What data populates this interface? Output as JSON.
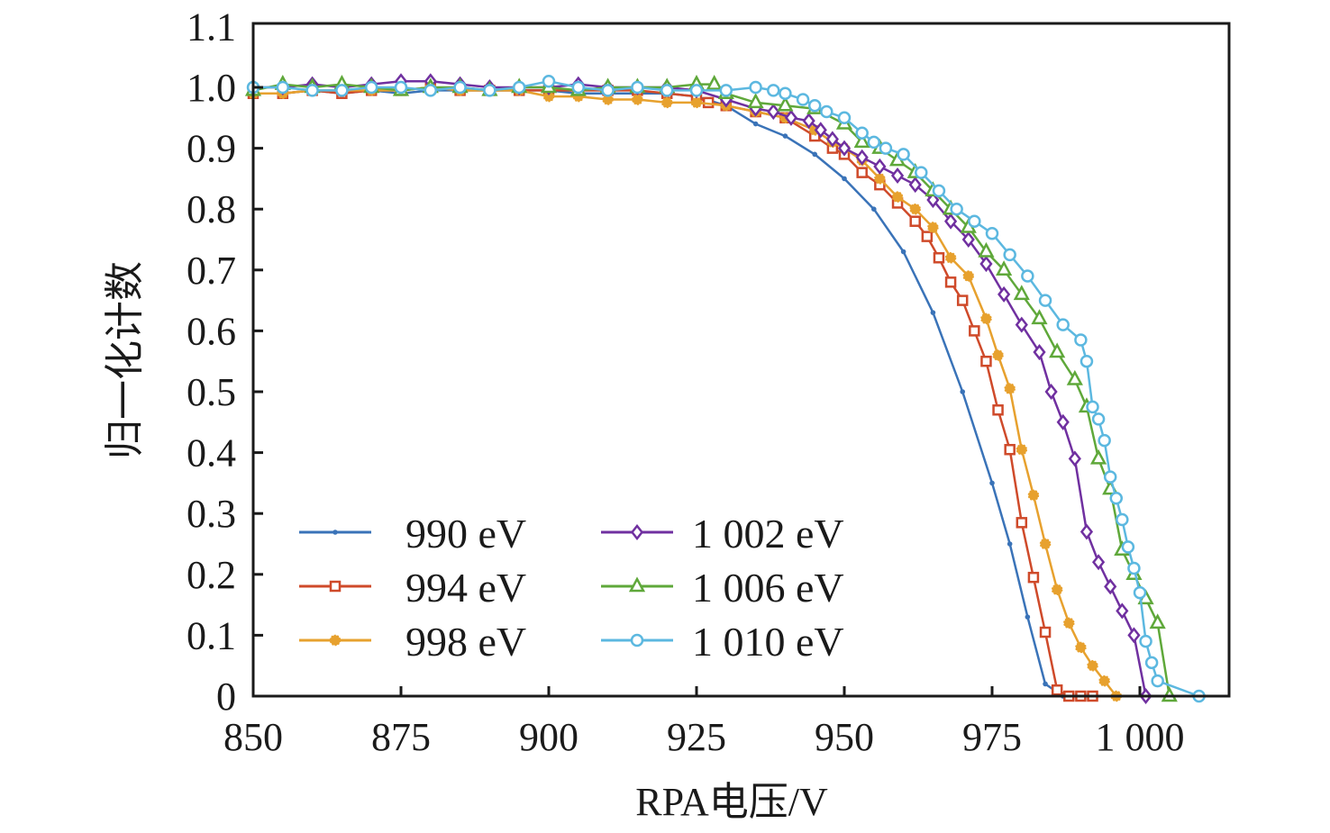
{
  "chart_data": {
    "type": "line",
    "title": "",
    "xlabel": "RPA电压/V",
    "ylabel": "归一化计数",
    "xlim": [
      850,
      1015
    ],
    "ylim": [
      0,
      1.1
    ],
    "xticks": [
      850,
      875,
      900,
      925,
      950,
      975,
      1000
    ],
    "xtick_labels": [
      "850",
      "875",
      "900",
      "925",
      "950",
      "975",
      "1 000"
    ],
    "yticks": [
      0,
      0.1,
      0.2,
      0.3,
      0.4,
      0.5,
      0.6,
      0.7,
      0.8,
      0.9,
      1.0,
      1.1
    ],
    "ytick_labels": [
      "0",
      "0.1",
      "0.2",
      "0.3",
      "0.4",
      "0.5",
      "0.6",
      "0.7",
      "0.8",
      "0.9",
      "1.0",
      "1.1"
    ],
    "grid": false,
    "legend_position": "bottom-left",
    "series": [
      {
        "name": "990 eV",
        "color": "#3a73b8",
        "marker": "dot",
        "x": [
          850,
          855,
          860,
          865,
          870,
          875,
          880,
          885,
          890,
          895,
          900,
          905,
          910,
          915,
          920,
          925,
          930,
          935,
          940,
          945,
          950,
          955,
          960,
          965,
          970,
          975,
          978,
          981,
          984,
          987
        ],
        "y": [
          0.99,
          0.99,
          0.995,
          0.99,
          0.995,
          0.99,
          0.995,
          0.995,
          0.995,
          0.995,
          0.995,
          0.99,
          0.99,
          0.99,
          0.99,
          0.985,
          0.97,
          0.94,
          0.92,
          0.89,
          0.85,
          0.8,
          0.73,
          0.63,
          0.5,
          0.35,
          0.25,
          0.13,
          0.02,
          0.0
        ]
      },
      {
        "name": "994 eV",
        "color": "#cf4a2a",
        "marker": "square",
        "x": [
          850,
          855,
          860,
          865,
          870,
          875,
          880,
          885,
          890,
          895,
          900,
          905,
          910,
          915,
          920,
          925,
          927,
          930,
          935,
          940,
          945,
          948,
          950,
          953,
          956,
          959,
          962,
          964,
          966,
          968,
          970,
          972,
          974,
          976,
          978,
          980,
          982,
          984,
          986,
          988,
          990,
          992
        ],
        "y": [
          0.99,
          0.99,
          0.995,
          0.99,
          0.995,
          0.995,
          1.0,
          0.995,
          0.995,
          0.995,
          0.995,
          0.995,
          0.995,
          0.995,
          0.99,
          0.985,
          0.975,
          0.97,
          0.96,
          0.95,
          0.92,
          0.9,
          0.89,
          0.86,
          0.84,
          0.81,
          0.78,
          0.755,
          0.72,
          0.68,
          0.65,
          0.6,
          0.55,
          0.47,
          0.405,
          0.285,
          0.195,
          0.105,
          0.01,
          0.0,
          0.0,
          0.0
        ]
      },
      {
        "name": "998 eV",
        "color": "#e7a12e",
        "marker": "star",
        "x": [
          850,
          855,
          860,
          865,
          870,
          875,
          880,
          885,
          890,
          895,
          900,
          905,
          910,
          915,
          920,
          925,
          930,
          935,
          940,
          945,
          948,
          950,
          953,
          956,
          959,
          962,
          965,
          968,
          971,
          974,
          976,
          978,
          980,
          982,
          984,
          986,
          988,
          990,
          992,
          994,
          996
        ],
        "y": [
          0.99,
          0.99,
          0.995,
          0.995,
          0.995,
          0.995,
          1.0,
          0.995,
          0.995,
          0.995,
          0.985,
          0.985,
          0.98,
          0.98,
          0.975,
          0.975,
          0.97,
          0.96,
          0.95,
          0.93,
          0.91,
          0.9,
          0.88,
          0.85,
          0.82,
          0.8,
          0.77,
          0.72,
          0.69,
          0.62,
          0.56,
          0.505,
          0.405,
          0.33,
          0.25,
          0.175,
          0.12,
          0.08,
          0.05,
          0.025,
          0.0
        ]
      },
      {
        "name": "1 002 eV",
        "color": "#7030a0",
        "marker": "diamond",
        "x": [
          850,
          855,
          860,
          865,
          870,
          875,
          880,
          885,
          890,
          895,
          900,
          905,
          910,
          915,
          920,
          925,
          930,
          935,
          938,
          941,
          944,
          946,
          948,
          950,
          953,
          956,
          959,
          962,
          965,
          968,
          971,
          974,
          977,
          980,
          983,
          985,
          987,
          989,
          991,
          993,
          995,
          997,
          999,
          1001
        ],
        "y": [
          1.0,
          1.0,
          1.005,
          1.0,
          1.005,
          1.01,
          1.01,
          1.005,
          1.0,
          1.0,
          1.0,
          1.005,
          1.0,
          1.0,
          1.0,
          0.995,
          0.98,
          0.965,
          0.96,
          0.95,
          0.945,
          0.93,
          0.915,
          0.9,
          0.885,
          0.87,
          0.855,
          0.84,
          0.815,
          0.78,
          0.75,
          0.71,
          0.66,
          0.61,
          0.565,
          0.5,
          0.45,
          0.39,
          0.27,
          0.22,
          0.18,
          0.14,
          0.1,
          0.0
        ]
      },
      {
        "name": "1 006 eV",
        "color": "#5fa83a",
        "marker": "triangle",
        "x": [
          850,
          855,
          860,
          865,
          870,
          875,
          880,
          885,
          890,
          895,
          900,
          905,
          910,
          915,
          920,
          925,
          928,
          930,
          935,
          940,
          945,
          950,
          953,
          956,
          959,
          962,
          965,
          968,
          971,
          974,
          977,
          980,
          983,
          986,
          989,
          991,
          993,
          995,
          997,
          999,
          1001,
          1003,
          1005
        ],
        "y": [
          0.995,
          1.005,
          1.0,
          1.005,
          1.0,
          0.995,
          1.0,
          1.0,
          0.995,
          1.0,
          1.0,
          0.995,
          1.0,
          1.0,
          1.0,
          1.005,
          1.005,
          0.99,
          0.975,
          0.97,
          0.965,
          0.94,
          0.91,
          0.9,
          0.88,
          0.86,
          0.83,
          0.8,
          0.77,
          0.73,
          0.7,
          0.66,
          0.62,
          0.565,
          0.52,
          0.475,
          0.39,
          0.34,
          0.24,
          0.2,
          0.16,
          0.12,
          0.0
        ]
      },
      {
        "name": "1 010 eV",
        "color": "#5cb8e0",
        "marker": "circle",
        "x": [
          850,
          855,
          860,
          865,
          870,
          875,
          880,
          885,
          890,
          895,
          900,
          905,
          910,
          915,
          920,
          925,
          930,
          935,
          938,
          940,
          943,
          945,
          947,
          950,
          953,
          955,
          957,
          960,
          963,
          966,
          969,
          972,
          975,
          978,
          981,
          984,
          987,
          990,
          991,
          992,
          993,
          994,
          995,
          996,
          997,
          998,
          999,
          1000,
          1001,
          1002,
          1003,
          1010
        ],
        "y": [
          1.0,
          1.0,
          0.995,
          0.995,
          1.0,
          1.0,
          0.995,
          1.0,
          0.995,
          1.0,
          1.01,
          1.0,
          0.995,
          1.0,
          0.995,
          0.995,
          0.995,
          1.0,
          0.995,
          0.99,
          0.98,
          0.97,
          0.96,
          0.95,
          0.925,
          0.91,
          0.9,
          0.89,
          0.86,
          0.83,
          0.8,
          0.78,
          0.76,
          0.725,
          0.69,
          0.65,
          0.61,
          0.585,
          0.55,
          0.475,
          0.455,
          0.42,
          0.36,
          0.325,
          0.29,
          0.245,
          0.21,
          0.17,
          0.09,
          0.055,
          0.025,
          0.0
        ]
      }
    ]
  }
}
